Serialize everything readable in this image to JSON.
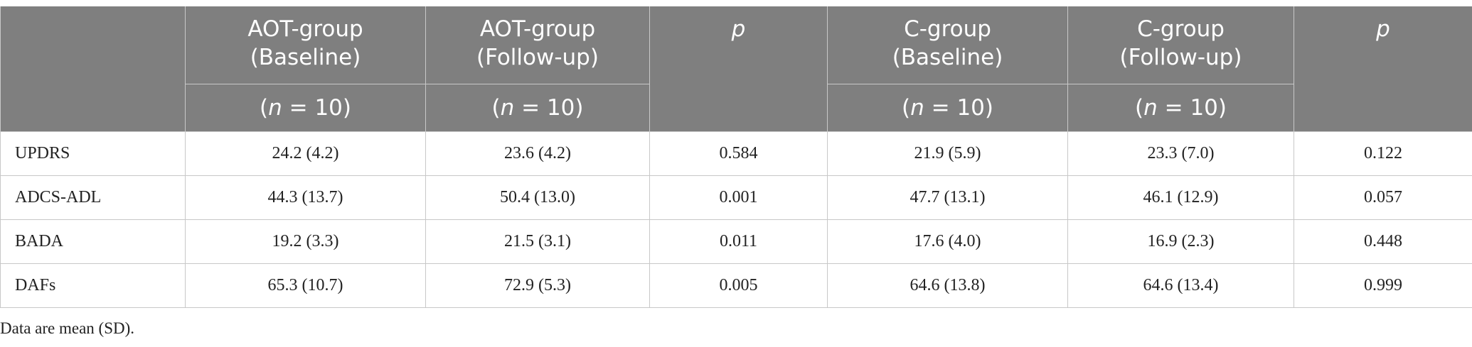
{
  "table": {
    "header": {
      "columns": [
        {
          "title": [
            "AOT-group",
            "(Baseline)"
          ],
          "n": [
            "(",
            "n",
            " = 10)"
          ]
        },
        {
          "title": [
            "AOT-group",
            "(Follow-up)"
          ],
          "n": [
            "(",
            "n",
            " = 10)"
          ]
        },
        {
          "title": [
            "p"
          ]
        },
        {
          "title": [
            "C-group",
            "(Baseline)"
          ],
          "n": [
            "(",
            "n",
            " = 10)"
          ]
        },
        {
          "title": [
            "C-group",
            "(Follow-up)"
          ],
          "n": [
            "(",
            "n",
            " = 10)"
          ]
        },
        {
          "title": [
            "p"
          ]
        }
      ]
    },
    "rows": [
      [
        "UPDRS",
        "24.2 (4.2)",
        "23.6 (4.2)",
        "0.584",
        "21.9 (5.9)",
        "23.3 (7.0)",
        "0.122"
      ],
      [
        "ADCS-ADL",
        "44.3 (13.7)",
        "50.4 (13.0)",
        "0.001",
        "47.7 (13.1)",
        "46.1 (12.9)",
        "0.057"
      ],
      [
        "BADA",
        "19.2 (3.3)",
        "21.5 (3.1)",
        "0.011",
        "17.6 (4.0)",
        "16.9 (2.3)",
        "0.448"
      ],
      [
        "DAFs",
        "65.3 (10.7)",
        "72.9 (5.3)",
        "0.005",
        "64.6 (13.8)",
        "64.6 (13.4)",
        "0.999"
      ]
    ]
  },
  "footnote": "Data are mean (SD)."
}
